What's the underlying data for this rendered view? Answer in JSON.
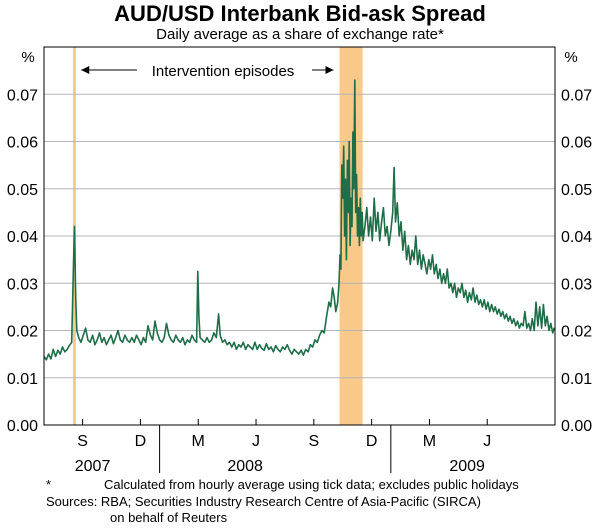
{
  "chart_data": {
    "type": "line",
    "title": "AUD/USD Interbank Bid-ask Spread",
    "subtitle": "Daily average as a share of exchange rate*",
    "ylabel": "%",
    "ylim": [
      0,
      0.08
    ],
    "yticks": [
      "0.00",
      "0.01",
      "0.02",
      "0.03",
      "0.04",
      "0.05",
      "0.06",
      "0.07"
    ],
    "xlim": [
      2007.5,
      2009.71
    ],
    "xticks": [
      {
        "label": "S",
        "x": 2007.667
      },
      {
        "label": "D",
        "x": 2007.917
      },
      {
        "label": "M",
        "x": 2008.167
      },
      {
        "label": "J",
        "x": 2008.417
      },
      {
        "label": "S",
        "x": 2008.667
      },
      {
        "label": "D",
        "x": 2008.917
      },
      {
        "label": "M",
        "x": 2009.167
      },
      {
        "label": "J",
        "x": 2009.417
      }
    ],
    "years": [
      {
        "label": "2007",
        "x": 2007.71
      },
      {
        "label": "2008",
        "x": 2008.37
      },
      {
        "label": "2009",
        "x": 2009.33
      }
    ],
    "grid": true,
    "intervention_label": "Intervention episodes",
    "intervention_color": "#f9c98a",
    "intervention_periods": [
      {
        "start": 2007.625,
        "end": 2007.635
      },
      {
        "start": 2008.778,
        "end": 2008.878
      }
    ],
    "series": [
      {
        "color": "#1e6e48",
        "points": [
          [
            2007.5,
            0.0145
          ],
          [
            2007.51,
            0.0138
          ],
          [
            2007.52,
            0.015
          ],
          [
            2007.53,
            0.014
          ],
          [
            2007.54,
            0.016
          ],
          [
            2007.55,
            0.0145
          ],
          [
            2007.56,
            0.0158
          ],
          [
            2007.57,
            0.015
          ],
          [
            2007.58,
            0.0165
          ],
          [
            2007.59,
            0.0155
          ],
          [
            2007.6,
            0.016
          ],
          [
            2007.61,
            0.0168
          ],
          [
            2007.62,
            0.0175
          ],
          [
            2007.628,
            0.035
          ],
          [
            2007.632,
            0.042
          ],
          [
            2007.637,
            0.027
          ],
          [
            2007.642,
            0.02
          ],
          [
            2007.65,
            0.0185
          ],
          [
            2007.66,
            0.0175
          ],
          [
            2007.67,
            0.019
          ],
          [
            2007.68,
            0.0205
          ],
          [
            2007.69,
            0.018
          ],
          [
            2007.7,
            0.0175
          ],
          [
            2007.71,
            0.019
          ],
          [
            2007.72,
            0.017
          ],
          [
            2007.73,
            0.018
          ],
          [
            2007.74,
            0.0195
          ],
          [
            2007.75,
            0.0175
          ],
          [
            2007.76,
            0.0185
          ],
          [
            2007.77,
            0.017
          ],
          [
            2007.78,
            0.018
          ],
          [
            2007.79,
            0.019
          ],
          [
            2007.8,
            0.0172
          ],
          [
            2007.81,
            0.0185
          ],
          [
            2007.82,
            0.02
          ],
          [
            2007.83,
            0.018
          ],
          [
            2007.84,
            0.0175
          ],
          [
            2007.85,
            0.019
          ],
          [
            2007.86,
            0.018
          ],
          [
            2007.87,
            0.0175
          ],
          [
            2007.88,
            0.0185
          ],
          [
            2007.89,
            0.0175
          ],
          [
            2007.9,
            0.019
          ],
          [
            2007.91,
            0.018
          ],
          [
            2007.92,
            0.017
          ],
          [
            2007.93,
            0.0185
          ],
          [
            2007.94,
            0.0175
          ],
          [
            2007.95,
            0.021
          ],
          [
            2007.96,
            0.019
          ],
          [
            2007.97,
            0.018
          ],
          [
            2007.98,
            0.022
          ],
          [
            2007.99,
            0.0195
          ],
          [
            2008.0,
            0.018
          ],
          [
            2008.01,
            0.0175
          ],
          [
            2008.02,
            0.0185
          ],
          [
            2008.03,
            0.0215
          ],
          [
            2008.04,
            0.019
          ],
          [
            2008.05,
            0.018
          ],
          [
            2008.06,
            0.0175
          ],
          [
            2008.07,
            0.019
          ],
          [
            2008.08,
            0.018
          ],
          [
            2008.09,
            0.0175
          ],
          [
            2008.1,
            0.0185
          ],
          [
            2008.11,
            0.017
          ],
          [
            2008.12,
            0.018
          ],
          [
            2008.13,
            0.0175
          ],
          [
            2008.14,
            0.019
          ],
          [
            2008.15,
            0.018
          ],
          [
            2008.16,
            0.0175
          ],
          [
            2008.165,
            0.0325
          ],
          [
            2008.17,
            0.023
          ],
          [
            2008.175,
            0.0185
          ],
          [
            2008.185,
            0.018
          ],
          [
            2008.195,
            0.0175
          ],
          [
            2008.205,
            0.0185
          ],
          [
            2008.215,
            0.0175
          ],
          [
            2008.225,
            0.018
          ],
          [
            2008.235,
            0.0195
          ],
          [
            2008.245,
            0.0185
          ],
          [
            2008.255,
            0.0235
          ],
          [
            2008.262,
            0.019
          ],
          [
            2008.272,
            0.0175
          ],
          [
            2008.282,
            0.018
          ],
          [
            2008.292,
            0.017
          ],
          [
            2008.302,
            0.0175
          ],
          [
            2008.312,
            0.0165
          ],
          [
            2008.322,
            0.0175
          ],
          [
            2008.332,
            0.016
          ],
          [
            2008.342,
            0.017
          ],
          [
            2008.352,
            0.0165
          ],
          [
            2008.362,
            0.0175
          ],
          [
            2008.372,
            0.016
          ],
          [
            2008.382,
            0.017
          ],
          [
            2008.392,
            0.0165
          ],
          [
            2008.402,
            0.016
          ],
          [
            2008.412,
            0.0175
          ],
          [
            2008.422,
            0.016
          ],
          [
            2008.432,
            0.017
          ],
          [
            2008.442,
            0.0162
          ],
          [
            2008.452,
            0.0158
          ],
          [
            2008.462,
            0.0172
          ],
          [
            2008.472,
            0.016
          ],
          [
            2008.482,
            0.0165
          ],
          [
            2008.492,
            0.0155
          ],
          [
            2008.502,
            0.0168
          ],
          [
            2008.512,
            0.016
          ],
          [
            2008.522,
            0.0155
          ],
          [
            2008.532,
            0.0165
          ],
          [
            2008.542,
            0.016
          ],
          [
            2008.552,
            0.017
          ],
          [
            2008.562,
            0.0158
          ],
          [
            2008.572,
            0.015
          ],
          [
            2008.582,
            0.016
          ],
          [
            2008.592,
            0.0155
          ],
          [
            2008.602,
            0.015
          ],
          [
            2008.612,
            0.0158
          ],
          [
            2008.622,
            0.0148
          ],
          [
            2008.632,
            0.016
          ],
          [
            2008.642,
            0.0155
          ],
          [
            2008.652,
            0.017
          ],
          [
            2008.662,
            0.0165
          ],
          [
            2008.672,
            0.018
          ],
          [
            2008.682,
            0.0175
          ],
          [
            2008.692,
            0.019
          ],
          [
            2008.702,
            0.02
          ],
          [
            2008.712,
            0.0195
          ],
          [
            2008.722,
            0.023
          ],
          [
            2008.732,
            0.026
          ],
          [
            2008.74,
            0.025
          ],
          [
            2008.748,
            0.029
          ],
          [
            2008.755,
            0.027
          ],
          [
            2008.762,
            0.024
          ],
          [
            2008.77,
            0.026
          ],
          [
            2008.776,
            0.03
          ],
          [
            2008.78,
            0.036
          ],
          [
            2008.784,
            0.033
          ],
          [
            2008.788,
            0.055
          ],
          [
            2008.792,
            0.048
          ],
          [
            2008.796,
            0.059
          ],
          [
            2008.8,
            0.04
          ],
          [
            2008.804,
            0.052
          ],
          [
            2008.808,
            0.035
          ],
          [
            2008.812,
            0.056
          ],
          [
            2008.816,
            0.045
          ],
          [
            2008.82,
            0.06
          ],
          [
            2008.824,
            0.038
          ],
          [
            2008.828,
            0.048
          ],
          [
            2008.832,
            0.042
          ],
          [
            2008.836,
            0.062
          ],
          [
            2008.84,
            0.05
          ],
          [
            2008.844,
            0.073
          ],
          [
            2008.848,
            0.045
          ],
          [
            2008.852,
            0.053
          ],
          [
            2008.856,
            0.04
          ],
          [
            2008.86,
            0.046
          ],
          [
            2008.864,
            0.038
          ],
          [
            2008.868,
            0.048
          ],
          [
            2008.872,
            0.04
          ],
          [
            2008.876,
            0.045
          ],
          [
            2008.88,
            0.039
          ],
          [
            2008.888,
            0.042
          ],
          [
            2008.896,
            0.046
          ],
          [
            2008.904,
            0.04
          ],
          [
            2008.912,
            0.044
          ],
          [
            2008.92,
            0.039
          ],
          [
            2008.928,
            0.048
          ],
          [
            2008.936,
            0.041
          ],
          [
            2008.944,
            0.045
          ],
          [
            2008.952,
            0.039
          ],
          [
            2008.96,
            0.043
          ],
          [
            2008.968,
            0.046
          ],
          [
            2008.976,
            0.04
          ],
          [
            2008.984,
            0.042
          ],
          [
            2008.992,
            0.038
          ],
          [
            2009.0,
            0.041
          ],
          [
            2009.008,
            0.045
          ],
          [
            2009.014,
            0.0545
          ],
          [
            2009.02,
            0.043
          ],
          [
            2009.028,
            0.047
          ],
          [
            2009.036,
            0.04
          ],
          [
            2009.044,
            0.043
          ],
          [
            2009.052,
            0.037
          ],
          [
            2009.06,
            0.041
          ],
          [
            2009.068,
            0.035
          ],
          [
            2009.076,
            0.038
          ],
          [
            2009.084,
            0.034
          ],
          [
            2009.092,
            0.037
          ],
          [
            2009.1,
            0.035
          ],
          [
            2009.108,
            0.04
          ],
          [
            2009.116,
            0.034
          ],
          [
            2009.124,
            0.037
          ],
          [
            2009.132,
            0.033
          ],
          [
            2009.14,
            0.036
          ],
          [
            2009.148,
            0.034
          ],
          [
            2009.156,
            0.032
          ],
          [
            2009.164,
            0.035
          ],
          [
            2009.172,
            0.033
          ],
          [
            2009.18,
            0.036
          ],
          [
            2009.188,
            0.032
          ],
          [
            2009.196,
            0.034
          ],
          [
            2009.204,
            0.031
          ],
          [
            2009.212,
            0.033
          ],
          [
            2009.22,
            0.03
          ],
          [
            2009.228,
            0.032
          ],
          [
            2009.236,
            0.03
          ],
          [
            2009.244,
            0.033
          ],
          [
            2009.252,
            0.029
          ],
          [
            2009.26,
            0.03
          ],
          [
            2009.268,
            0.028
          ],
          [
            2009.276,
            0.03
          ],
          [
            2009.284,
            0.027
          ],
          [
            2009.292,
            0.029
          ],
          [
            2009.3,
            0.028
          ],
          [
            2009.308,
            0.03
          ],
          [
            2009.316,
            0.027
          ],
          [
            2009.324,
            0.0285
          ],
          [
            2009.332,
            0.026
          ],
          [
            2009.34,
            0.028
          ],
          [
            2009.348,
            0.0265
          ],
          [
            2009.356,
            0.029
          ],
          [
            2009.364,
            0.026
          ],
          [
            2009.372,
            0.0275
          ],
          [
            2009.38,
            0.0255
          ],
          [
            2009.388,
            0.0265
          ],
          [
            2009.396,
            0.025
          ],
          [
            2009.404,
            0.0265
          ],
          [
            2009.412,
            0.0245
          ],
          [
            2009.42,
            0.026
          ],
          [
            2009.428,
            0.024
          ],
          [
            2009.436,
            0.0255
          ],
          [
            2009.444,
            0.024
          ],
          [
            2009.452,
            0.025
          ],
          [
            2009.46,
            0.0235
          ],
          [
            2009.468,
            0.0245
          ],
          [
            2009.476,
            0.023
          ],
          [
            2009.484,
            0.024
          ],
          [
            2009.492,
            0.0225
          ],
          [
            2009.5,
            0.0235
          ],
          [
            2009.508,
            0.022
          ],
          [
            2009.516,
            0.023
          ],
          [
            2009.524,
            0.0215
          ],
          [
            2009.532,
            0.0225
          ],
          [
            2009.54,
            0.021
          ],
          [
            2009.548,
            0.022
          ],
          [
            2009.556,
            0.0205
          ],
          [
            2009.564,
            0.0215
          ],
          [
            2009.572,
            0.021
          ],
          [
            2009.58,
            0.024
          ],
          [
            2009.588,
            0.0205
          ],
          [
            2009.596,
            0.0215
          ],
          [
            2009.604,
            0.02
          ],
          [
            2009.612,
            0.0225
          ],
          [
            2009.62,
            0.02
          ],
          [
            2009.628,
            0.026
          ],
          [
            2009.636,
            0.021
          ],
          [
            2009.644,
            0.025
          ],
          [
            2009.652,
            0.0205
          ],
          [
            2009.66,
            0.0255
          ],
          [
            2009.668,
            0.021
          ],
          [
            2009.676,
            0.023
          ],
          [
            2009.684,
            0.02
          ],
          [
            2009.692,
            0.0215
          ],
          [
            2009.7,
            0.0195
          ],
          [
            2009.706,
            0.0205
          ]
        ]
      }
    ]
  },
  "footnotes": {
    "star": "*",
    "line1": "Calculated from hourly average using tick data; excludes public holidays",
    "line2": "Sources: RBA; Securities Industry Research Centre of Asia-Pacific (SIRCA)",
    "line3": "on behalf of Reuters"
  }
}
